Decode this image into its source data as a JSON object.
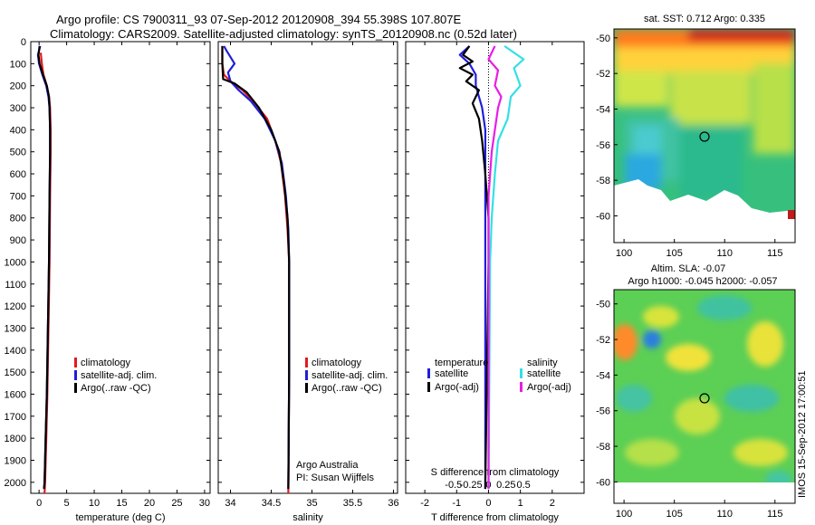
{
  "header": {
    "title_line1": "Argo profile: CS 7900311_93 07-Sep-2012 20120908_394 55.398S 107.807E",
    "title_line2": "Climatology: CARS2009. Satellite-adjusted climatology: synTS_20120908.nc (0.52d later)"
  },
  "colors": {
    "climatology": "#e41a1c",
    "satellite": "#1f1fd8",
    "argo": "#000000",
    "salinity_satellite": "#33e0e6",
    "salinity_argo": "#e61ee6"
  },
  "chart_data": [
    {
      "type": "line",
      "panel": "temperature",
      "xlabel": "temperature (deg C)",
      "xticks": [
        0,
        5,
        10,
        15,
        20,
        25,
        30
      ],
      "xlim": [
        -1.5,
        31
      ],
      "ylim": [
        2050,
        0
      ],
      "yticks": [
        0,
        100,
        200,
        300,
        400,
        500,
        600,
        700,
        800,
        900,
        1000,
        1100,
        1200,
        1300,
        1400,
        1500,
        1600,
        1700,
        1800,
        1900,
        2000
      ],
      "legend": [
        "climatology",
        "satellite-adj. clim.",
        "Argo(..raw -QC)"
      ],
      "series": [
        {
          "name": "climatology",
          "color_key": "climatology",
          "points": [
            [
              0.3,
              50
            ],
            [
              0.5,
              100
            ],
            [
              0.8,
              150
            ],
            [
              1.4,
              200
            ],
            [
              1.8,
              250
            ],
            [
              2.0,
              300
            ],
            [
              2.1,
              400
            ],
            [
              2.1,
              500
            ],
            [
              2.0,
              700
            ],
            [
              1.9,
              1000
            ],
            [
              1.7,
              1300
            ],
            [
              1.5,
              1600
            ],
            [
              1.3,
              1800
            ],
            [
              1.1,
              2000
            ],
            [
              1.0,
              2050
            ]
          ]
        },
        {
          "name": "satellite-adj. clim.",
          "color_key": "satellite",
          "points": [
            [
              0.2,
              20
            ],
            [
              -0.2,
              60
            ],
            [
              0.0,
              100
            ],
            [
              0.6,
              150
            ],
            [
              1.3,
              200
            ],
            [
              1.7,
              250
            ],
            [
              1.9,
              300
            ],
            [
              2.0,
              400
            ],
            [
              2.0,
              500
            ],
            [
              1.9,
              700
            ],
            [
              1.8,
              1000
            ],
            [
              1.6,
              1300
            ],
            [
              1.4,
              1600
            ],
            [
              1.2,
              1800
            ],
            [
              1.0,
              2000
            ],
            [
              0.9,
              2030
            ]
          ]
        },
        {
          "name": "Argo(..raw -QC)",
          "color_key": "argo",
          "points": [
            [
              0.1,
              20
            ],
            [
              -0.1,
              60
            ],
            [
              0.1,
              100
            ],
            [
              0.7,
              150
            ],
            [
              1.4,
              200
            ],
            [
              1.8,
              250
            ],
            [
              1.9,
              300
            ],
            [
              2.0,
              400
            ],
            [
              2.0,
              500
            ],
            [
              1.9,
              700
            ],
            [
              1.8,
              1000
            ],
            [
              1.6,
              1300
            ],
            [
              1.4,
              1600
            ],
            [
              1.2,
              1800
            ],
            [
              1.0,
              2000
            ],
            [
              0.9,
              2030
            ]
          ]
        }
      ]
    },
    {
      "type": "line",
      "panel": "salinity",
      "xlabel": "salinity",
      "xticks": [
        34,
        34.5,
        35,
        35.5,
        36
      ],
      "xtick_labels": [
        "34",
        "34.5",
        "35",
        "35.5",
        "36"
      ],
      "xlim": [
        33.85,
        36.05
      ],
      "ylim": [
        2050,
        0
      ],
      "legend": [
        "climatology",
        "satellite-adj. clim.",
        "Argo(..raw -QC)"
      ],
      "annotations": [
        "Argo Australia",
        "PI: Susan Wijffels"
      ],
      "series": [
        {
          "name": "climatology",
          "color_key": "climatology",
          "points": [
            [
              33.9,
              20
            ],
            [
              33.9,
              100
            ],
            [
              33.92,
              150
            ],
            [
              34.0,
              180
            ],
            [
              34.15,
              220
            ],
            [
              34.3,
              280
            ],
            [
              34.45,
              350
            ],
            [
              34.55,
              450
            ],
            [
              34.62,
              550
            ],
            [
              34.67,
              700
            ],
            [
              34.7,
              850
            ],
            [
              34.72,
              1000
            ],
            [
              34.72,
              1500
            ],
            [
              34.71,
              2050
            ]
          ]
        },
        {
          "name": "satellite-adj. clim.",
          "color_key": "satellite",
          "points": [
            [
              33.92,
              20
            ],
            [
              33.95,
              40
            ],
            [
              34.05,
              100
            ],
            [
              33.97,
              140
            ],
            [
              34.0,
              180
            ],
            [
              34.1,
              220
            ],
            [
              34.25,
              270
            ],
            [
              34.42,
              350
            ],
            [
              34.55,
              450
            ],
            [
              34.63,
              550
            ],
            [
              34.68,
              700
            ],
            [
              34.71,
              850
            ],
            [
              34.72,
              1000
            ],
            [
              34.72,
              1500
            ],
            [
              34.71,
              2030
            ]
          ]
        },
        {
          "name": "Argo(..raw -QC)",
          "color_key": "argo",
          "points": [
            [
              33.9,
              20
            ],
            [
              33.9,
              100
            ],
            [
              33.91,
              170
            ],
            [
              34.05,
              190
            ],
            [
              34.2,
              230
            ],
            [
              34.35,
              300
            ],
            [
              34.5,
              400
            ],
            [
              34.6,
              500
            ],
            [
              34.66,
              650
            ],
            [
              34.7,
              800
            ],
            [
              34.72,
              1000
            ],
            [
              34.72,
              1500
            ],
            [
              34.71,
              2030
            ]
          ]
        }
      ]
    },
    {
      "type": "line",
      "panel": "difference",
      "xlabel": "T difference from climatology",
      "top_label": "S difference from climatology",
      "xticks": [
        -2,
        -1,
        0,
        1,
        2
      ],
      "xlim": [
        -2.6,
        3
      ],
      "top_ticks": [
        "-0.5",
        "-0.25",
        "0",
        "0.25",
        "0.5"
      ],
      "ylim": [
        2050,
        0
      ],
      "legend_temperature_title": "temperature",
      "legend_salinity_title": "salinity",
      "legend": [
        "satellite",
        "Argo(-adj)",
        "satellite",
        "Argo(-adj)"
      ],
      "series": [
        {
          "name": "satellite",
          "color_key": "satellite",
          "group": "temperature",
          "points": [
            [
              -0.6,
              20
            ],
            [
              -0.9,
              60
            ],
            [
              -0.6,
              100
            ],
            [
              -0.4,
              150
            ],
            [
              -0.4,
              200
            ],
            [
              -0.2,
              300
            ],
            [
              -0.1,
              400
            ],
            [
              -0.1,
              600
            ],
            [
              -0.1,
              1000
            ],
            [
              -0.1,
              2030
            ]
          ]
        },
        {
          "name": "Argo(-adj)",
          "color_key": "argo",
          "group": "temperature",
          "points": [
            [
              -0.6,
              20
            ],
            [
              -0.8,
              60
            ],
            [
              -0.5,
              90
            ],
            [
              -0.9,
              120
            ],
            [
              -0.5,
              150
            ],
            [
              -0.7,
              180
            ],
            [
              -0.3,
              220
            ],
            [
              -0.5,
              280
            ],
            [
              -0.3,
              350
            ],
            [
              -0.2,
              450
            ],
            [
              -0.1,
              600
            ],
            [
              0.0,
              800
            ],
            [
              0.0,
              1000
            ],
            [
              -0.1,
              2030
            ]
          ]
        },
        {
          "name": "satellite",
          "color_key": "salinity_satellite",
          "group": "salinity",
          "points": [
            [
              0.5,
              20
            ],
            [
              1.1,
              80
            ],
            [
              0.8,
              120
            ],
            [
              1.0,
              200
            ],
            [
              0.7,
              250
            ],
            [
              0.6,
              350
            ],
            [
              0.3,
              450
            ],
            [
              0.2,
              600
            ],
            [
              0.1,
              800
            ],
            [
              0.05,
              1000
            ],
            [
              0.0,
              2030
            ]
          ]
        },
        {
          "name": "Argo(-adj)",
          "color_key": "salinity_argo",
          "group": "salinity",
          "points": [
            [
              0.2,
              20
            ],
            [
              0.0,
              80
            ],
            [
              0.3,
              130
            ],
            [
              0.2,
              200
            ],
            [
              0.4,
              250
            ],
            [
              0.3,
              300
            ],
            [
              0.2,
              400
            ],
            [
              0.1,
              500
            ],
            [
              0.0,
              700
            ],
            [
              0.0,
              1000
            ],
            [
              0.0,
              2030
            ]
          ]
        }
      ]
    },
    {
      "type": "heatmap",
      "panel": "sst_map",
      "title": "sat. SST: 0.712 Argo: 0.335",
      "xticks": [
        100,
        105,
        110,
        115
      ],
      "yticks": [
        -50,
        -52,
        -54,
        -56,
        -58,
        -60
      ],
      "xlim": [
        99,
        117
      ],
      "ylim": [
        -61.5,
        -49.5
      ],
      "profile_location": [
        107.8,
        -55.4
      ]
    },
    {
      "type": "heatmap",
      "panel": "sla_map",
      "title": "Altim. SLA: -0.07",
      "subtitle": "Argo h1000: -0.045 h2000: -0.057",
      "xticks": [
        100,
        105,
        110,
        115
      ],
      "yticks": [
        -50,
        -52,
        -54,
        -56,
        -58,
        -60
      ],
      "xlim": [
        99,
        117
      ],
      "ylim": [
        -61.2,
        -49.2
      ],
      "profile_location": [
        107.8,
        -55.4
      ]
    }
  ],
  "side_label": "IMOS 15-Sep-2012 17:00:51"
}
